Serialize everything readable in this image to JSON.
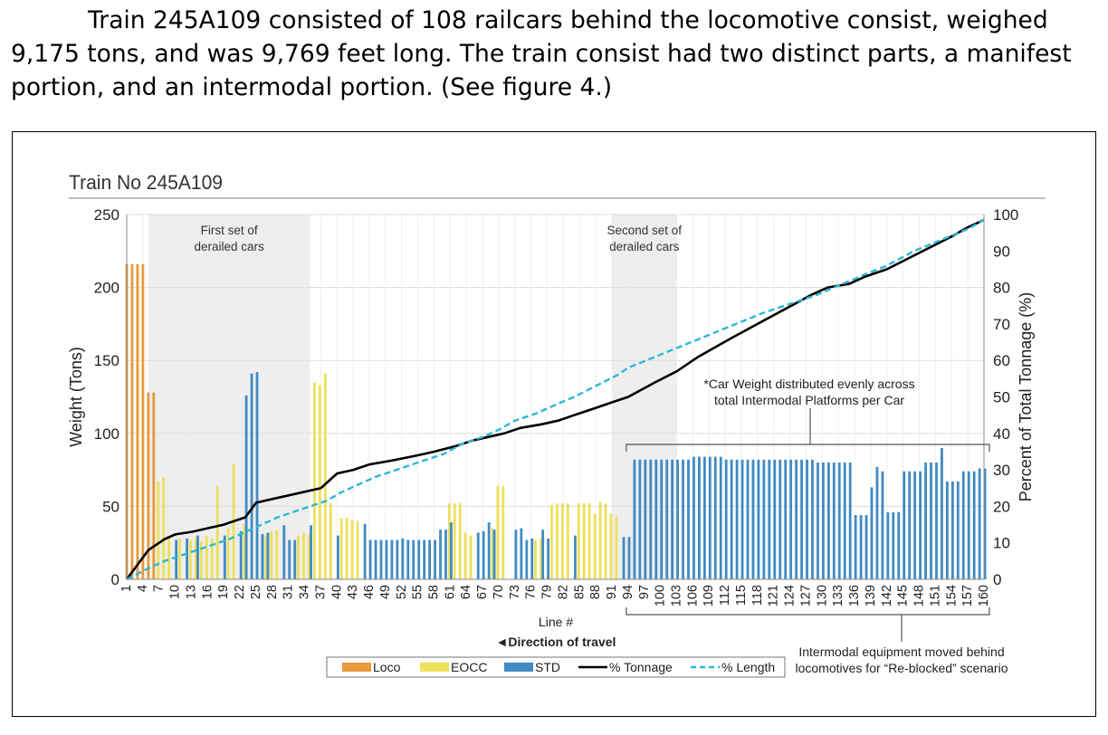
{
  "paragraph": {
    "line1": "Train 245A109 consisted of 108 railcars behind the locomotive consist, weighed",
    "line2": "9,175 tons, and was 9,769 feet long. The train consist had two distinct parts, a manifest",
    "line3": "portion, and an intermodal portion. (See figure 4.)"
  },
  "chart_data": {
    "type": "bar",
    "title": "Train No 245A109",
    "xlabel": "Line #",
    "ylabel": "Weight (Tons)",
    "y2label": "Percent of Total Tonnage (%)",
    "ylim": [
      0,
      250
    ],
    "y2lim": [
      0,
      100
    ],
    "yticks": [
      0,
      50,
      100,
      150,
      200,
      250
    ],
    "y2ticks": [
      0,
      10,
      20,
      30,
      40,
      50,
      60,
      70,
      80,
      90,
      100
    ],
    "xlim": [
      1,
      160
    ],
    "xticks": [
      1,
      4,
      7,
      10,
      13,
      16,
      19,
      22,
      25,
      28,
      31,
      34,
      37,
      40,
      43,
      46,
      49,
      52,
      55,
      58,
      61,
      64,
      67,
      70,
      73,
      76,
      79,
      82,
      85,
      88,
      91,
      94,
      97,
      100,
      103,
      106,
      109,
      112,
      115,
      118,
      121,
      124,
      127,
      130,
      133,
      136,
      139,
      142,
      145,
      148,
      151,
      154,
      157,
      160
    ],
    "grid": true,
    "legend_position": "bottom-center",
    "direction_label": "◄Direction of travel",
    "colors": {
      "Loco": "#E8993A",
      "EOCC": "#EDE05A",
      "STD": "#3F8AC4",
      "tonnage": "#000000",
      "length": "#2BB8D6",
      "shade": "#EEEEEE",
      "grid": "#DDDDDD"
    },
    "series": [
      {
        "name": "Loco",
        "kind": "bar",
        "points": [
          [
            1,
            216
          ],
          [
            2,
            216
          ],
          [
            3,
            216
          ],
          [
            4,
            216
          ],
          [
            5,
            128
          ],
          [
            6,
            128
          ]
        ]
      },
      {
        "name": "EOCC",
        "kind": "bar",
        "points": [
          [
            7,
            67
          ],
          [
            8,
            70
          ],
          [
            9,
            30
          ],
          [
            11,
            28
          ],
          [
            13,
            27
          ],
          [
            14,
            29
          ],
          [
            15,
            26
          ],
          [
            16,
            30
          ],
          [
            17,
            28
          ],
          [
            18,
            64
          ],
          [
            20,
            35
          ],
          [
            21,
            79
          ],
          [
            23,
            38
          ],
          [
            27,
            30
          ],
          [
            28,
            33
          ],
          [
            29,
            34
          ],
          [
            33,
            30
          ],
          [
            34,
            32
          ],
          [
            35,
            31
          ],
          [
            36,
            135
          ],
          [
            37,
            133
          ],
          [
            38,
            141
          ],
          [
            39,
            52
          ],
          [
            41,
            42
          ],
          [
            42,
            42
          ],
          [
            43,
            41
          ],
          [
            44,
            40
          ],
          [
            61,
            52
          ],
          [
            62,
            52
          ],
          [
            63,
            52
          ],
          [
            64,
            32
          ],
          [
            65,
            30
          ],
          [
            69,
            35
          ],
          [
            70,
            64
          ],
          [
            71,
            64
          ],
          [
            77,
            27
          ],
          [
            78,
            28
          ],
          [
            80,
            51
          ],
          [
            81,
            52
          ],
          [
            82,
            52
          ],
          [
            83,
            52
          ],
          [
            85,
            52
          ],
          [
            86,
            52
          ],
          [
            87,
            52
          ],
          [
            88,
            45
          ],
          [
            89,
            53
          ],
          [
            90,
            52
          ],
          [
            91,
            45
          ],
          [
            92,
            43
          ]
        ]
      },
      {
        "name": "STD",
        "kind": "bar",
        "points": [
          [
            10,
            27
          ],
          [
            12,
            28
          ],
          [
            14,
            30
          ],
          [
            19,
            30
          ],
          [
            22,
            33
          ],
          [
            23,
            126
          ],
          [
            24,
            141
          ],
          [
            25,
            142
          ],
          [
            26,
            31
          ],
          [
            27,
            32
          ],
          [
            30,
            37
          ],
          [
            31,
            27
          ],
          [
            32,
            27
          ],
          [
            35,
            37
          ],
          [
            40,
            30
          ],
          [
            45,
            38
          ],
          [
            46,
            27
          ],
          [
            47,
            27
          ],
          [
            48,
            27
          ],
          [
            49,
            27
          ],
          [
            50,
            27
          ],
          [
            51,
            27
          ],
          [
            52,
            28
          ],
          [
            53,
            27
          ],
          [
            54,
            27
          ],
          [
            55,
            27
          ],
          [
            56,
            27
          ],
          [
            57,
            27
          ],
          [
            58,
            27
          ],
          [
            59,
            34
          ],
          [
            60,
            34
          ],
          [
            61,
            39
          ],
          [
            66,
            32
          ],
          [
            67,
            33
          ],
          [
            68,
            39
          ],
          [
            69,
            34
          ],
          [
            73,
            34
          ],
          [
            74,
            35
          ],
          [
            75,
            27
          ],
          [
            76,
            28
          ],
          [
            78,
            34
          ],
          [
            79,
            28
          ],
          [
            84,
            30
          ],
          [
            93,
            29
          ],
          [
            94,
            29
          ],
          [
            95,
            82
          ],
          [
            96,
            82
          ],
          [
            97,
            82
          ],
          [
            98,
            82
          ],
          [
            99,
            82
          ],
          [
            100,
            82
          ],
          [
            101,
            82
          ],
          [
            102,
            82
          ],
          [
            103,
            82
          ],
          [
            104,
            82
          ],
          [
            105,
            82
          ],
          [
            106,
            84
          ],
          [
            107,
            84
          ],
          [
            108,
            84
          ],
          [
            109,
            84
          ],
          [
            110,
            84
          ],
          [
            111,
            84
          ],
          [
            112,
            82
          ],
          [
            113,
            82
          ],
          [
            114,
            82
          ],
          [
            115,
            82
          ],
          [
            116,
            82
          ],
          [
            117,
            82
          ],
          [
            118,
            82
          ],
          [
            119,
            82
          ],
          [
            120,
            82
          ],
          [
            121,
            82
          ],
          [
            122,
            82
          ],
          [
            123,
            82
          ],
          [
            124,
            82
          ],
          [
            125,
            82
          ],
          [
            126,
            82
          ],
          [
            127,
            82
          ],
          [
            128,
            82
          ],
          [
            129,
            80
          ],
          [
            130,
            80
          ],
          [
            131,
            80
          ],
          [
            132,
            80
          ],
          [
            133,
            80
          ],
          [
            134,
            80
          ],
          [
            135,
            80
          ],
          [
            136,
            44
          ],
          [
            137,
            44
          ],
          [
            138,
            44
          ],
          [
            139,
            63
          ],
          [
            140,
            77
          ],
          [
            141,
            74
          ],
          [
            142,
            46
          ],
          [
            143,
            46
          ],
          [
            144,
            46
          ],
          [
            145,
            74
          ],
          [
            146,
            74
          ],
          [
            147,
            74
          ],
          [
            148,
            74
          ],
          [
            149,
            80
          ],
          [
            150,
            80
          ],
          [
            151,
            80
          ],
          [
            152,
            90
          ],
          [
            153,
            67
          ],
          [
            154,
            67
          ],
          [
            155,
            67
          ],
          [
            156,
            74
          ],
          [
            157,
            74
          ],
          [
            158,
            74
          ],
          [
            159,
            76
          ],
          [
            160,
            76
          ]
        ]
      },
      {
        "name": "% Tonnage",
        "kind": "line",
        "axis": "y2",
        "points": [
          [
            1,
            0
          ],
          [
            5,
            8
          ],
          [
            8,
            11
          ],
          [
            10,
            12.3
          ],
          [
            13,
            13
          ],
          [
            16,
            14
          ],
          [
            19,
            15
          ],
          [
            21,
            16
          ],
          [
            23,
            17
          ],
          [
            25,
            21
          ],
          [
            28,
            22
          ],
          [
            31,
            23
          ],
          [
            34,
            24
          ],
          [
            37,
            25
          ],
          [
            40,
            29
          ],
          [
            43,
            30
          ],
          [
            46,
            31.5
          ],
          [
            50,
            32.5
          ],
          [
            55,
            34
          ],
          [
            58,
            35
          ],
          [
            62,
            36.5
          ],
          [
            65,
            38
          ],
          [
            68,
            39
          ],
          [
            71,
            40
          ],
          [
            74,
            41.5
          ],
          [
            78,
            42.5
          ],
          [
            81,
            43.5
          ],
          [
            85,
            45.5
          ],
          [
            88,
            47
          ],
          [
            91,
            48.5
          ],
          [
            94,
            50
          ],
          [
            99,
            54
          ],
          [
            103,
            57
          ],
          [
            107,
            61
          ],
          [
            113,
            66
          ],
          [
            118,
            70
          ],
          [
            123,
            74
          ],
          [
            128,
            78
          ],
          [
            131,
            80
          ],
          [
            135,
            81
          ],
          [
            138,
            83
          ],
          [
            142,
            85
          ],
          [
            146,
            88
          ],
          [
            150,
            91
          ],
          [
            154,
            94
          ],
          [
            157,
            96.5
          ],
          [
            160,
            98.5
          ]
        ]
      },
      {
        "name": "% Length",
        "kind": "line",
        "axis": "y2",
        "points": [
          [
            1,
            0
          ],
          [
            5,
            3
          ],
          [
            8,
            5
          ],
          [
            11,
            6.5
          ],
          [
            14,
            8
          ],
          [
            17,
            9.5
          ],
          [
            20,
            11
          ],
          [
            23,
            13
          ],
          [
            26,
            15
          ],
          [
            29,
            17
          ],
          [
            32,
            18.5
          ],
          [
            35,
            20
          ],
          [
            38,
            21.5
          ],
          [
            41,
            24
          ],
          [
            44,
            26
          ],
          [
            47,
            28
          ],
          [
            50,
            29.5
          ],
          [
            53,
            31
          ],
          [
            56,
            32.5
          ],
          [
            60,
            34.5
          ],
          [
            63,
            37
          ],
          [
            67,
            39
          ],
          [
            70,
            41
          ],
          [
            73,
            43.5
          ],
          [
            77,
            45.5
          ],
          [
            80,
            47.5
          ],
          [
            84,
            50
          ],
          [
            88,
            53
          ],
          [
            92,
            56
          ],
          [
            94,
            58
          ],
          [
            99,
            61
          ],
          [
            104,
            64
          ],
          [
            109,
            67
          ],
          [
            114,
            70
          ],
          [
            119,
            73
          ],
          [
            124,
            75.5
          ],
          [
            129,
            78
          ],
          [
            133,
            80.5
          ],
          [
            137,
            83
          ],
          [
            142,
            86
          ],
          [
            147,
            90
          ],
          [
            152,
            93
          ],
          [
            157,
            96
          ],
          [
            160,
            98.5
          ]
        ]
      }
    ],
    "shaded_regions": [
      {
        "label": "First set of derailed cars",
        "from": 5,
        "to": 35
      },
      {
        "label": "Second set of derailed cars",
        "from": 91,
        "to": 103
      }
    ],
    "annotations": {
      "car_weight_note": "*Car Weight distributed evenly across total Intermodal Platforms per Car",
      "intermodal_note": "Intermodal equipment moved behind locomotives for “Re-blocked” scenario"
    },
    "legend": [
      "Loco",
      "EOCC",
      "STD",
      "% Tonnage",
      "% Length"
    ]
  }
}
